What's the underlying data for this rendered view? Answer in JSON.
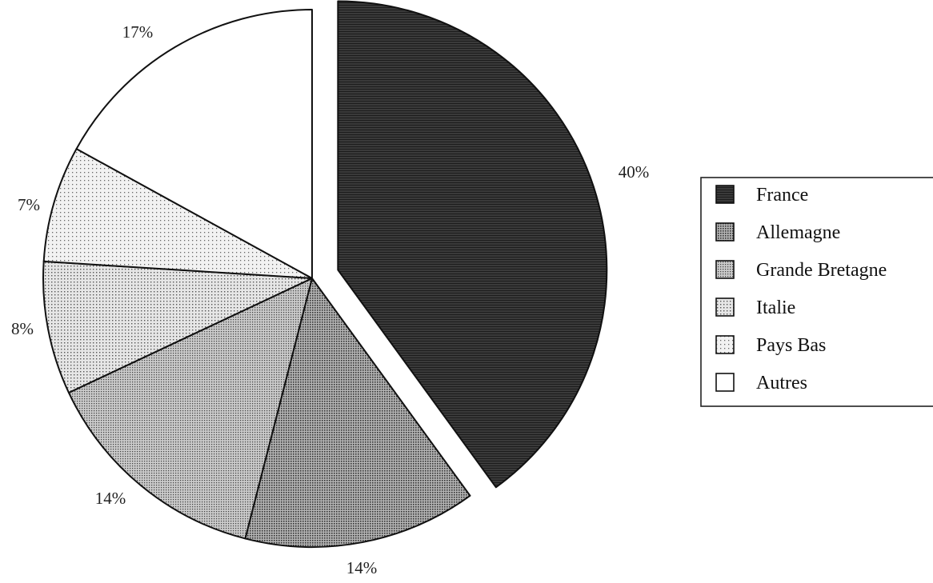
{
  "chart_data": {
    "type": "pie",
    "title": "",
    "legend_position": "right",
    "slices": [
      {
        "label": "France",
        "value": 40,
        "value_label": "40%",
        "color": "#2e2e2e",
        "pattern": "solid-dark"
      },
      {
        "label": "Allemagne",
        "value": 14,
        "value_label": "14%",
        "color": "#8c8c8c",
        "pattern": "dense-dots"
      },
      {
        "label": "Grande Bretagne",
        "value": 14,
        "value_label": "14%",
        "color": "#a6a6a6",
        "pattern": "medium-dots"
      },
      {
        "label": "Italie",
        "value": 8,
        "value_label": "8%",
        "color": "#c8c8c8",
        "pattern": "light-dots"
      },
      {
        "label": "Pays Bas",
        "value": 7,
        "value_label": "7%",
        "color": "#e3e3e3",
        "pattern": "very-light-dots"
      },
      {
        "label": "Autres",
        "value": 17,
        "value_label": "17%",
        "color": "#ffffff",
        "pattern": "none"
      }
    ]
  }
}
